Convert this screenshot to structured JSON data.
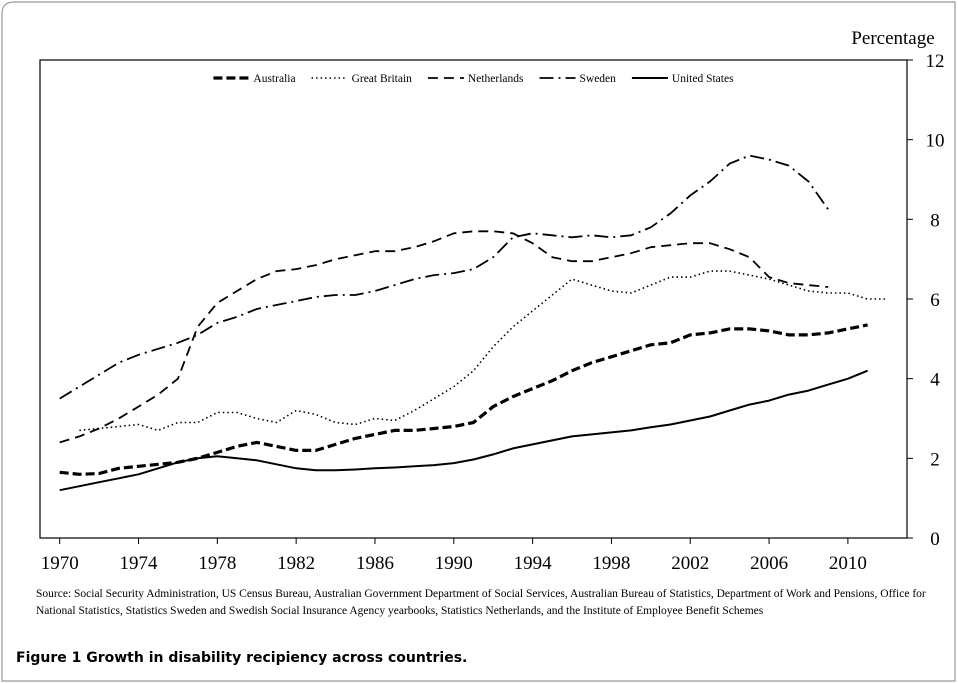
{
  "chart_data": {
    "type": "line",
    "ylabel": "Percentage",
    "source": "Source: Social Security Administration, US Census Bureau, Australian Government Department of Social Services, Australian Bureau of Statistics, Department of Work and Pensions, Office for National Statistics, Statistics  Sweden and Swedish Social Insurance Agency yearbooks, Statistics Netherlands, and the Institute of Employee Benefit Schemes",
    "caption": "Figure 1 Growth in disability recipiency across countries.",
    "x": [
      1970,
      1971,
      1972,
      1973,
      1974,
      1975,
      1976,
      1977,
      1978,
      1979,
      1980,
      1981,
      1982,
      1983,
      1984,
      1985,
      1986,
      1987,
      1988,
      1989,
      1990,
      1991,
      1992,
      1993,
      1994,
      1995,
      1996,
      1997,
      1998,
      1999,
      2000,
      2001,
      2002,
      2003,
      2004,
      2005,
      2006,
      2007,
      2008,
      2009,
      2010,
      2011,
      2012
    ],
    "xlim": [
      1969,
      2013
    ],
    "xticks": [
      1970,
      1974,
      1978,
      1982,
      1986,
      1990,
      1994,
      1998,
      2002,
      2006,
      2010
    ],
    "ylim": [
      0,
      12
    ],
    "yticks": [
      0,
      2,
      4,
      6,
      8,
      10,
      12
    ],
    "series": [
      {
        "name": "Australia",
        "color": "#000000",
        "dash": "9,4",
        "width": 3.2,
        "values": [
          1.65,
          1.6,
          1.62,
          1.75,
          1.8,
          1.85,
          1.9,
          2.0,
          2.15,
          2.3,
          2.4,
          2.3,
          2.2,
          2.2,
          2.35,
          2.5,
          2.6,
          2.7,
          2.7,
          2.75,
          2.8,
          2.9,
          3.3,
          3.55,
          3.75,
          3.95,
          4.2,
          4.4,
          4.55,
          4.7,
          4.85,
          4.9,
          5.1,
          5.15,
          5.25,
          5.25,
          5.2,
          5.1,
          5.1,
          5.15,
          5.25,
          5.35,
          null
        ]
      },
      {
        "name": "Great Britain",
        "color": "#000000",
        "dash": "1.5,3",
        "width": 1.6,
        "values": [
          null,
          2.7,
          2.75,
          2.8,
          2.85,
          2.7,
          2.9,
          2.9,
          3.15,
          3.15,
          3.0,
          2.9,
          3.2,
          3.1,
          2.9,
          2.85,
          3.0,
          2.95,
          3.2,
          3.5,
          3.8,
          4.2,
          4.8,
          5.3,
          5.7,
          6.1,
          6.5,
          6.35,
          6.2,
          6.15,
          6.35,
          6.55,
          6.55,
          6.7,
          6.7,
          6.6,
          6.5,
          6.35,
          6.2,
          6.15,
          6.15,
          6.0,
          6.0
        ]
      },
      {
        "name": "Netherlands",
        "color": "#000000",
        "dash": "10,6",
        "width": 1.8,
        "values": [
          2.4,
          2.55,
          2.75,
          3.0,
          3.3,
          3.6,
          4.0,
          5.3,
          5.9,
          6.2,
          6.5,
          6.7,
          6.75,
          6.85,
          7.0,
          7.1,
          7.2,
          7.2,
          7.3,
          7.45,
          7.65,
          7.7,
          7.7,
          7.65,
          7.4,
          7.05,
          6.95,
          6.95,
          7.05,
          7.15,
          7.3,
          7.35,
          7.4,
          7.4,
          7.25,
          7.05,
          6.55,
          6.4,
          6.35,
          6.3,
          null,
          null,
          null
        ]
      },
      {
        "name": "Sweden",
        "color": "#000000",
        "dash": "14,5,2,5",
        "width": 1.8,
        "values": [
          3.5,
          3.8,
          4.1,
          4.4,
          4.6,
          4.75,
          4.9,
          5.1,
          5.4,
          5.55,
          5.75,
          5.85,
          5.95,
          6.05,
          6.1,
          6.1,
          6.2,
          6.35,
          6.5,
          6.6,
          6.65,
          6.75,
          7.05,
          7.55,
          7.65,
          7.6,
          7.55,
          7.6,
          7.55,
          7.6,
          7.8,
          8.15,
          8.6,
          8.95,
          9.4,
          9.6,
          9.5,
          9.35,
          8.95,
          8.25,
          null,
          null,
          null
        ]
      },
      {
        "name": "United States",
        "color": "#000000",
        "dash": "none",
        "width": 2,
        "values": [
          1.2,
          1.3,
          1.4,
          1.5,
          1.6,
          1.75,
          1.9,
          2.0,
          2.05,
          2.0,
          1.95,
          1.85,
          1.75,
          1.7,
          1.7,
          1.72,
          1.75,
          1.77,
          1.8,
          1.83,
          1.88,
          1.97,
          2.1,
          2.25,
          2.35,
          2.45,
          2.55,
          2.6,
          2.65,
          2.7,
          2.78,
          2.85,
          2.95,
          3.05,
          3.2,
          3.35,
          3.45,
          3.6,
          3.7,
          3.85,
          4.0,
          4.2,
          null
        ]
      }
    ]
  }
}
